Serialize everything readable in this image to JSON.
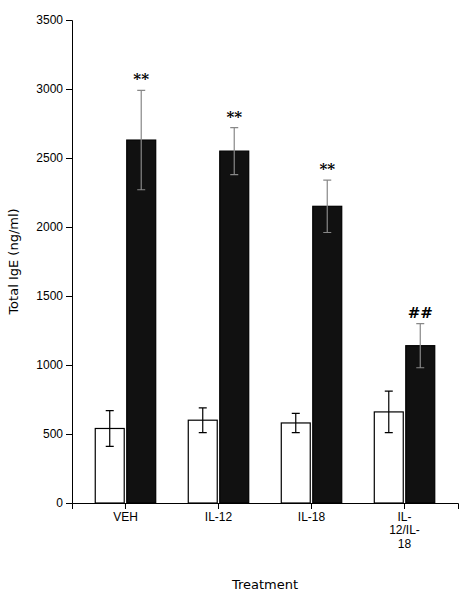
{
  "chart_data": {
    "type": "bar",
    "xlabel": "Treatment",
    "ylabel": "Total IgE (ng/ml)",
    "categories": [
      "VEH",
      "IL-12",
      "IL-18",
      "IL-\n12/IL-\n18"
    ],
    "series": [
      {
        "color": "#ffffff",
        "values": [
          540,
          600,
          580,
          660
        ],
        "errors": [
          130,
          90,
          70,
          150
        ]
      },
      {
        "color": "#111111",
        "values": [
          2630,
          2550,
          2150,
          1140
        ],
        "errors": [
          360,
          170,
          190,
          160
        ],
        "annotations": [
          "**",
          "**",
          "**",
          "##"
        ]
      }
    ],
    "ylim": [
      0,
      3500
    ],
    "yticks": [
      0,
      500,
      1000,
      1500,
      2000,
      2500,
      3000,
      3500
    ],
    "grid": false
  }
}
